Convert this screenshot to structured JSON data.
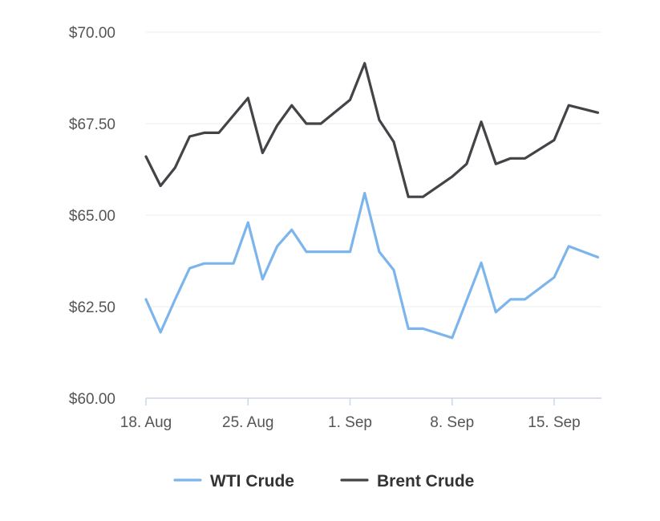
{
  "chart_data": {
    "type": "line",
    "x_ticks": [
      {
        "label": "18. Aug",
        "date": "2025-08-18"
      },
      {
        "label": "25. Aug",
        "date": "2025-08-25"
      },
      {
        "label": "1. Sep",
        "date": "2025-09-01"
      },
      {
        "label": "8. Sep",
        "date": "2025-09-08"
      },
      {
        "label": "15. Sep",
        "date": "2025-09-15"
      }
    ],
    "y_ticks": [
      {
        "label": "$60.00",
        "value": 60
      },
      {
        "label": "$62.50",
        "value": 62.5
      },
      {
        "label": "$65.00",
        "value": 65
      },
      {
        "label": "$67.50",
        "value": 67.5
      },
      {
        "label": "$70.00",
        "value": 70
      }
    ],
    "xlim": [
      "2025-08-18",
      "2025-09-21"
    ],
    "ylim": [
      60,
      70
    ],
    "grid": "horizontal",
    "legend": "bottom-center",
    "series": [
      {
        "name": "WTI Crude",
        "color": "#7cb5ec",
        "points": [
          {
            "x": "2025-08-18",
            "y": 62.7
          },
          {
            "x": "2025-08-19",
            "y": 61.8
          },
          {
            "x": "2025-08-20",
            "y": 62.7
          },
          {
            "x": "2025-08-21",
            "y": 63.55
          },
          {
            "x": "2025-08-22",
            "y": 63.68
          },
          {
            "x": "2025-08-24",
            "y": 63.68
          },
          {
            "x": "2025-08-25",
            "y": 64.8
          },
          {
            "x": "2025-08-26",
            "y": 63.25
          },
          {
            "x": "2025-08-27",
            "y": 64.15
          },
          {
            "x": "2025-08-28",
            "y": 64.6
          },
          {
            "x": "2025-08-29",
            "y": 64.0
          },
          {
            "x": "2025-09-01",
            "y": 64.0
          },
          {
            "x": "2025-09-02",
            "y": 65.6
          },
          {
            "x": "2025-09-03",
            "y": 64.0
          },
          {
            "x": "2025-09-04",
            "y": 63.5
          },
          {
            "x": "2025-09-05",
            "y": 61.9
          },
          {
            "x": "2025-09-06",
            "y": 61.9
          },
          {
            "x": "2025-09-08",
            "y": 61.65
          },
          {
            "x": "2025-09-10",
            "y": 63.7
          },
          {
            "x": "2025-09-11",
            "y": 62.35
          },
          {
            "x": "2025-09-12",
            "y": 62.7
          },
          {
            "x": "2025-09-13",
            "y": 62.7
          },
          {
            "x": "2025-09-15",
            "y": 63.3
          },
          {
            "x": "2025-09-16",
            "y": 64.15
          },
          {
            "x": "2025-09-18",
            "y": 63.85
          }
        ]
      },
      {
        "name": "Brent Crude",
        "color": "#434348",
        "points": [
          {
            "x": "2025-08-18",
            "y": 66.6
          },
          {
            "x": "2025-08-19",
            "y": 65.8
          },
          {
            "x": "2025-08-20",
            "y": 66.3
          },
          {
            "x": "2025-08-21",
            "y": 67.15
          },
          {
            "x": "2025-08-22",
            "y": 67.25
          },
          {
            "x": "2025-08-23",
            "y": 67.25
          },
          {
            "x": "2025-08-25",
            "y": 68.2
          },
          {
            "x": "2025-08-26",
            "y": 66.7
          },
          {
            "x": "2025-08-27",
            "y": 67.45
          },
          {
            "x": "2025-08-28",
            "y": 68.0
          },
          {
            "x": "2025-08-29",
            "y": 67.5
          },
          {
            "x": "2025-08-30",
            "y": 67.5
          },
          {
            "x": "2025-09-01",
            "y": 68.15
          },
          {
            "x": "2025-09-02",
            "y": 69.15
          },
          {
            "x": "2025-09-03",
            "y": 67.6
          },
          {
            "x": "2025-09-04",
            "y": 67.0
          },
          {
            "x": "2025-09-05",
            "y": 65.5
          },
          {
            "x": "2025-09-06",
            "y": 65.5
          },
          {
            "x": "2025-09-08",
            "y": 66.05
          },
          {
            "x": "2025-09-09",
            "y": 66.4
          },
          {
            "x": "2025-09-10",
            "y": 67.55
          },
          {
            "x": "2025-09-11",
            "y": 66.4
          },
          {
            "x": "2025-09-12",
            "y": 66.55
          },
          {
            "x": "2025-09-13",
            "y": 66.55
          },
          {
            "x": "2025-09-15",
            "y": 67.05
          },
          {
            "x": "2025-09-16",
            "y": 68.0
          },
          {
            "x": "2025-09-18",
            "y": 67.8
          }
        ]
      }
    ]
  }
}
